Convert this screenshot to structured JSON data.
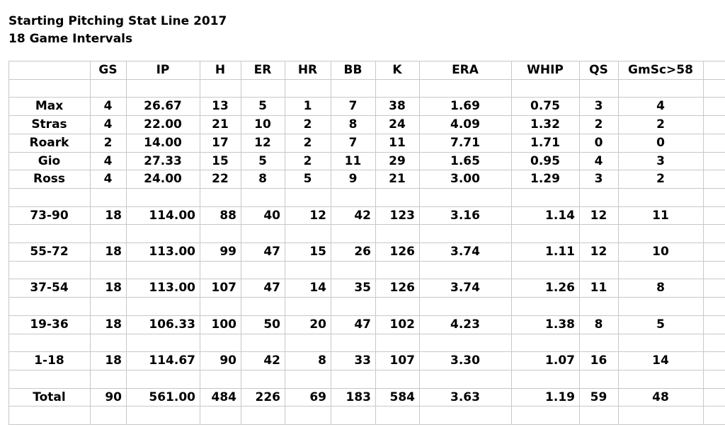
{
  "header": {
    "title": "Starting Pitching Stat Line 2017",
    "subtitle": "18 Game Intervals"
  },
  "table": {
    "columns": [
      "GS",
      "IP",
      "H",
      "ER",
      "HR",
      "BB",
      "K",
      "ERA",
      "WHIP",
      "QS",
      "GmSc>58"
    ],
    "rows": [
      {
        "label": "Max",
        "cells": [
          "4",
          "26.67",
          "13",
          "5",
          "1",
          "7",
          "38",
          "1.69",
          "0.75",
          "3",
          "4"
        ]
      },
      {
        "label": "Stras",
        "cells": [
          "4",
          "22.00",
          "21",
          "10",
          "2",
          "8",
          "24",
          "4.09",
          "1.32",
          "2",
          "2"
        ]
      },
      {
        "label": "Roark",
        "cells": [
          "2",
          "14.00",
          "17",
          "12",
          "2",
          "7",
          "11",
          "7.71",
          "1.71",
          "0",
          "0"
        ]
      },
      {
        "label": "Gio",
        "cells": [
          "4",
          "27.33",
          "15",
          "5",
          "2",
          "11",
          "29",
          "1.65",
          "0.95",
          "4",
          "3"
        ]
      },
      {
        "label": "Ross",
        "cells": [
          "4",
          "24.00",
          "22",
          "8",
          "5",
          "9",
          "21",
          "3.00",
          "1.29",
          "3",
          "2"
        ]
      },
      {
        "label": "73-90",
        "cells": [
          "18",
          "114.00",
          "88",
          "40",
          "12",
          "42",
          "123",
          "3.16",
          "1.14",
          "12",
          "11"
        ]
      },
      {
        "label": "55-72",
        "cells": [
          "18",
          "113.00",
          "99",
          "47",
          "15",
          "26",
          "126",
          "3.74",
          "1.11",
          "12",
          "10"
        ]
      },
      {
        "label": "37-54",
        "cells": [
          "18",
          "113.00",
          "107",
          "47",
          "14",
          "35",
          "126",
          "3.74",
          "1.26",
          "11",
          "8"
        ]
      },
      {
        "label": "19-36",
        "cells": [
          "18",
          "106.33",
          "100",
          "50",
          "20",
          "47",
          "102",
          "4.23",
          "1.38",
          "8",
          "5"
        ]
      },
      {
        "label": "1-18",
        "cells": [
          "18",
          "114.67",
          "90",
          "42",
          "8",
          "33",
          "107",
          "3.30",
          "1.07",
          "16",
          "14"
        ]
      },
      {
        "label": "Total",
        "cells": [
          "90",
          "561.00",
          "484",
          "226",
          "69",
          "183",
          "584",
          "3.63",
          "1.19",
          "59",
          "48"
        ]
      }
    ]
  }
}
